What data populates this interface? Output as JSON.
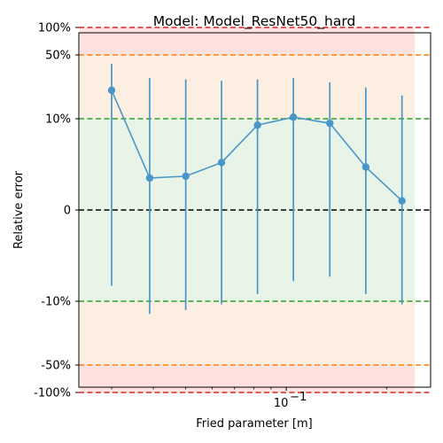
{
  "chart_data": {
    "type": "line",
    "title": "Model: Model_ResNet50_hard",
    "xlabel": "Fried parameter [m]",
    "ylabel": "Relative error",
    "x_scale": "log",
    "y_scale": "symlog",
    "x_ticks": [
      {
        "value": 0.1,
        "base": "10",
        "exp": "−1"
      }
    ],
    "y_ticks": [
      {
        "value": -1.0,
        "label": "-100%"
      },
      {
        "value": -0.5,
        "label": "-50%"
      },
      {
        "value": -0.1,
        "label": "-10%"
      },
      {
        "value": 0,
        "label": "0"
      },
      {
        "value": 0.1,
        "label": "10%"
      },
      {
        "value": 0.5,
        "label": "50%"
      },
      {
        "value": 1.0,
        "label": "100%"
      }
    ],
    "reference_lines": [
      {
        "y": 1.0,
        "color": "#d62728"
      },
      {
        "y": -1.0,
        "color": "#d62728"
      },
      {
        "y": 0.5,
        "color": "#ff7f0e"
      },
      {
        "y": -0.5,
        "color": "#ff7f0e"
      },
      {
        "y": 0.1,
        "color": "#2ca02c"
      },
      {
        "y": -0.1,
        "color": "#2ca02c"
      },
      {
        "y": 0,
        "color": "#000000"
      }
    ],
    "bands": [
      {
        "from": -1.0,
        "to": 1.0,
        "color": "#fde2df"
      },
      {
        "from": -0.5,
        "to": 0.5,
        "color": "#fdeee2"
      },
      {
        "from": -0.1,
        "to": 0.1,
        "color": "#e8f4e8"
      }
    ],
    "series": [
      {
        "color": "#4a96c8",
        "points": [
          {
            "x": 0.03,
            "y": 0.205,
            "err_low": -0.083,
            "err_high": 0.4
          },
          {
            "x": 0.039,
            "y": 0.035,
            "err_low": -0.138,
            "err_high": 0.28
          },
          {
            "x": 0.05,
            "y": 0.037,
            "err_low": -0.125,
            "err_high": 0.27
          },
          {
            "x": 0.064,
            "y": 0.052,
            "err_low": -0.108,
            "err_high": 0.26
          },
          {
            "x": 0.082,
            "y": 0.093,
            "err_low": -0.092,
            "err_high": 0.27
          },
          {
            "x": 0.105,
            "y": 0.104,
            "err_low": -0.078,
            "err_high": 0.28
          },
          {
            "x": 0.135,
            "y": 0.095,
            "err_low": -0.073,
            "err_high": 0.25
          },
          {
            "x": 0.173,
            "y": 0.047,
            "err_low": -0.092,
            "err_high": 0.22
          },
          {
            "x": 0.222,
            "y": 0.01,
            "err_low": -0.108,
            "err_high": 0.18
          }
        ]
      }
    ]
  }
}
